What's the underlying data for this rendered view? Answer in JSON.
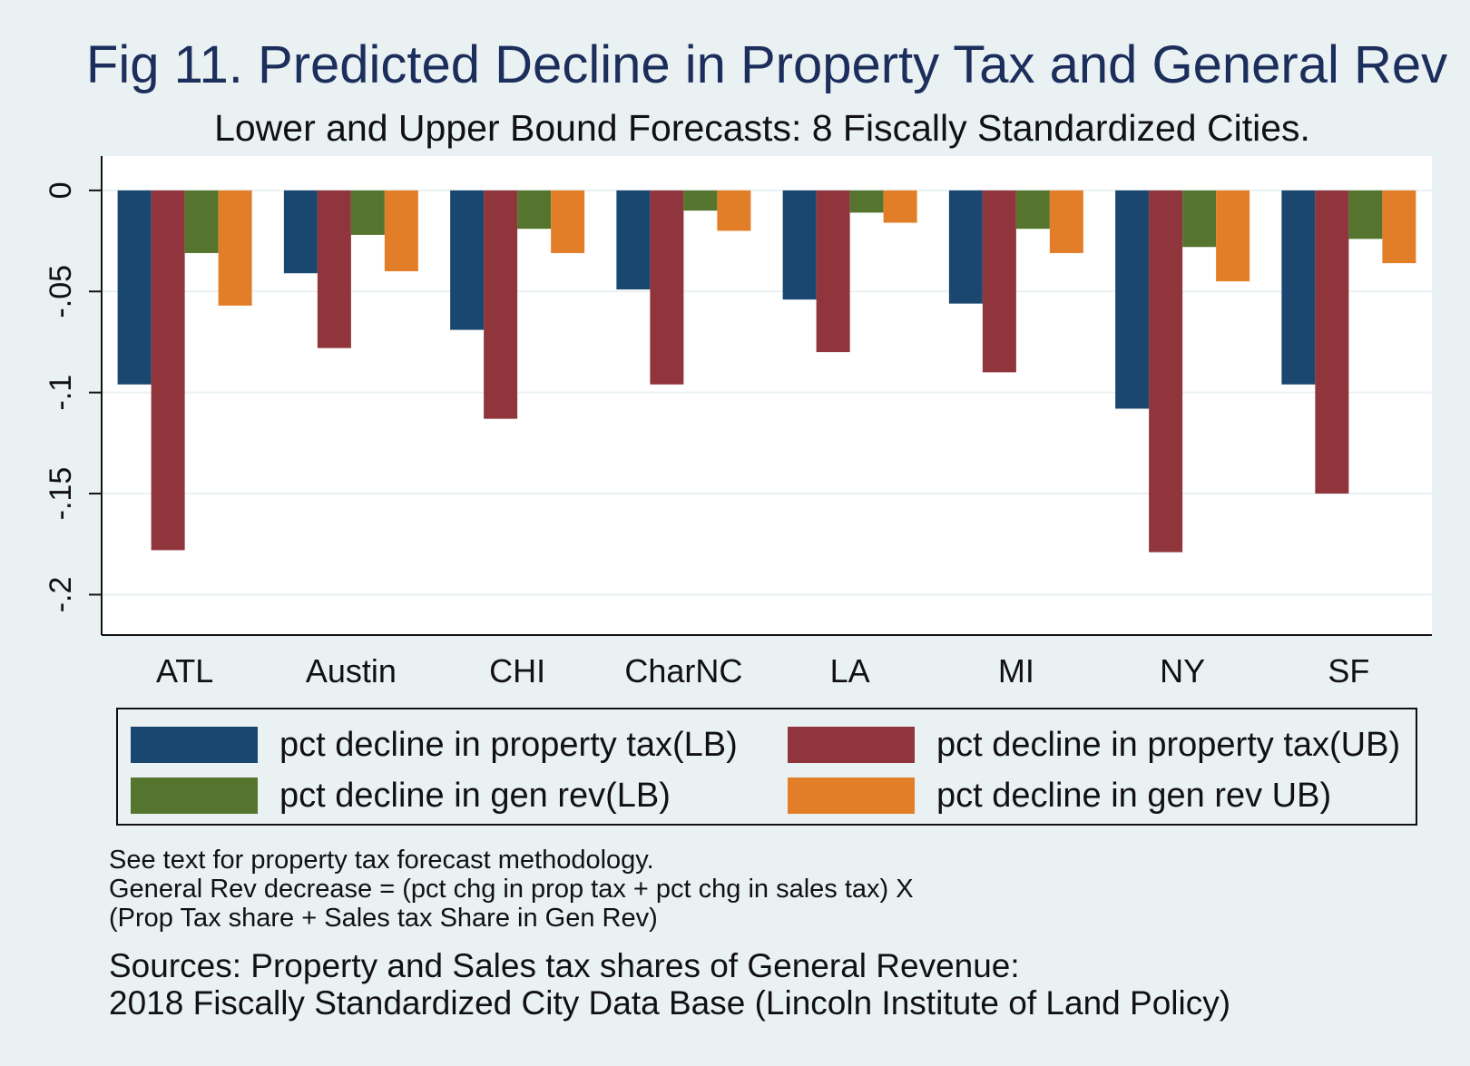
{
  "chart_data": {
    "type": "bar",
    "title": "Fig 11. Predicted Decline in Property Tax and General Rev",
    "subtitle": "Lower and Upper Bound Forecasts: 8 Fiscally Standardized Cities.",
    "categories": [
      "ATL",
      "Austin",
      "CHI",
      "CharNC",
      "LA",
      "MI",
      "NY",
      "SF"
    ],
    "series": [
      {
        "name": "pct decline in property tax(LB)",
        "color": "#1a476f",
        "values": [
          -0.096,
          -0.041,
          -0.069,
          -0.049,
          -0.054,
          -0.056,
          -0.108,
          -0.096
        ]
      },
      {
        "name": "pct decline in property tax(UB)",
        "color": "#90353b",
        "values": [
          -0.178,
          -0.078,
          -0.113,
          -0.096,
          -0.08,
          -0.09,
          -0.179,
          -0.15
        ]
      },
      {
        "name": "pct decline in gen rev(LB)",
        "color": "#55752f",
        "values": [
          -0.031,
          -0.022,
          -0.019,
          -0.01,
          -0.011,
          -0.019,
          -0.028,
          -0.024
        ]
      },
      {
        "name": "pct decline in gen rev UB)",
        "color": "#e37e28",
        "values": [
          -0.057,
          -0.04,
          -0.031,
          -0.02,
          -0.016,
          -0.031,
          -0.045,
          -0.036
        ]
      }
    ],
    "ylim": [
      -0.22,
      0.017
    ],
    "yticks": [
      0,
      -0.05,
      -0.1,
      -0.15,
      -0.2
    ],
    "ytick_labels": [
      "0",
      "-.05",
      "-.1",
      "-.15",
      "-.2"
    ],
    "xlabel": "",
    "ylabel": "",
    "grid": true,
    "legend_position": "bottom"
  },
  "notes": [
    "See text for property tax forecast methodology.",
    "General Rev decrease = (pct chg in prop tax + pct chg in sales tax)  X",
    "(Prop Tax share + Sales tax Share in Gen Rev)"
  ],
  "sources": [
    "Sources: Property and Sales tax shares of General Revenue:",
    "2018 Fiscally Standardized City Data Base (Lincoln Institute of Land Policy)"
  ]
}
